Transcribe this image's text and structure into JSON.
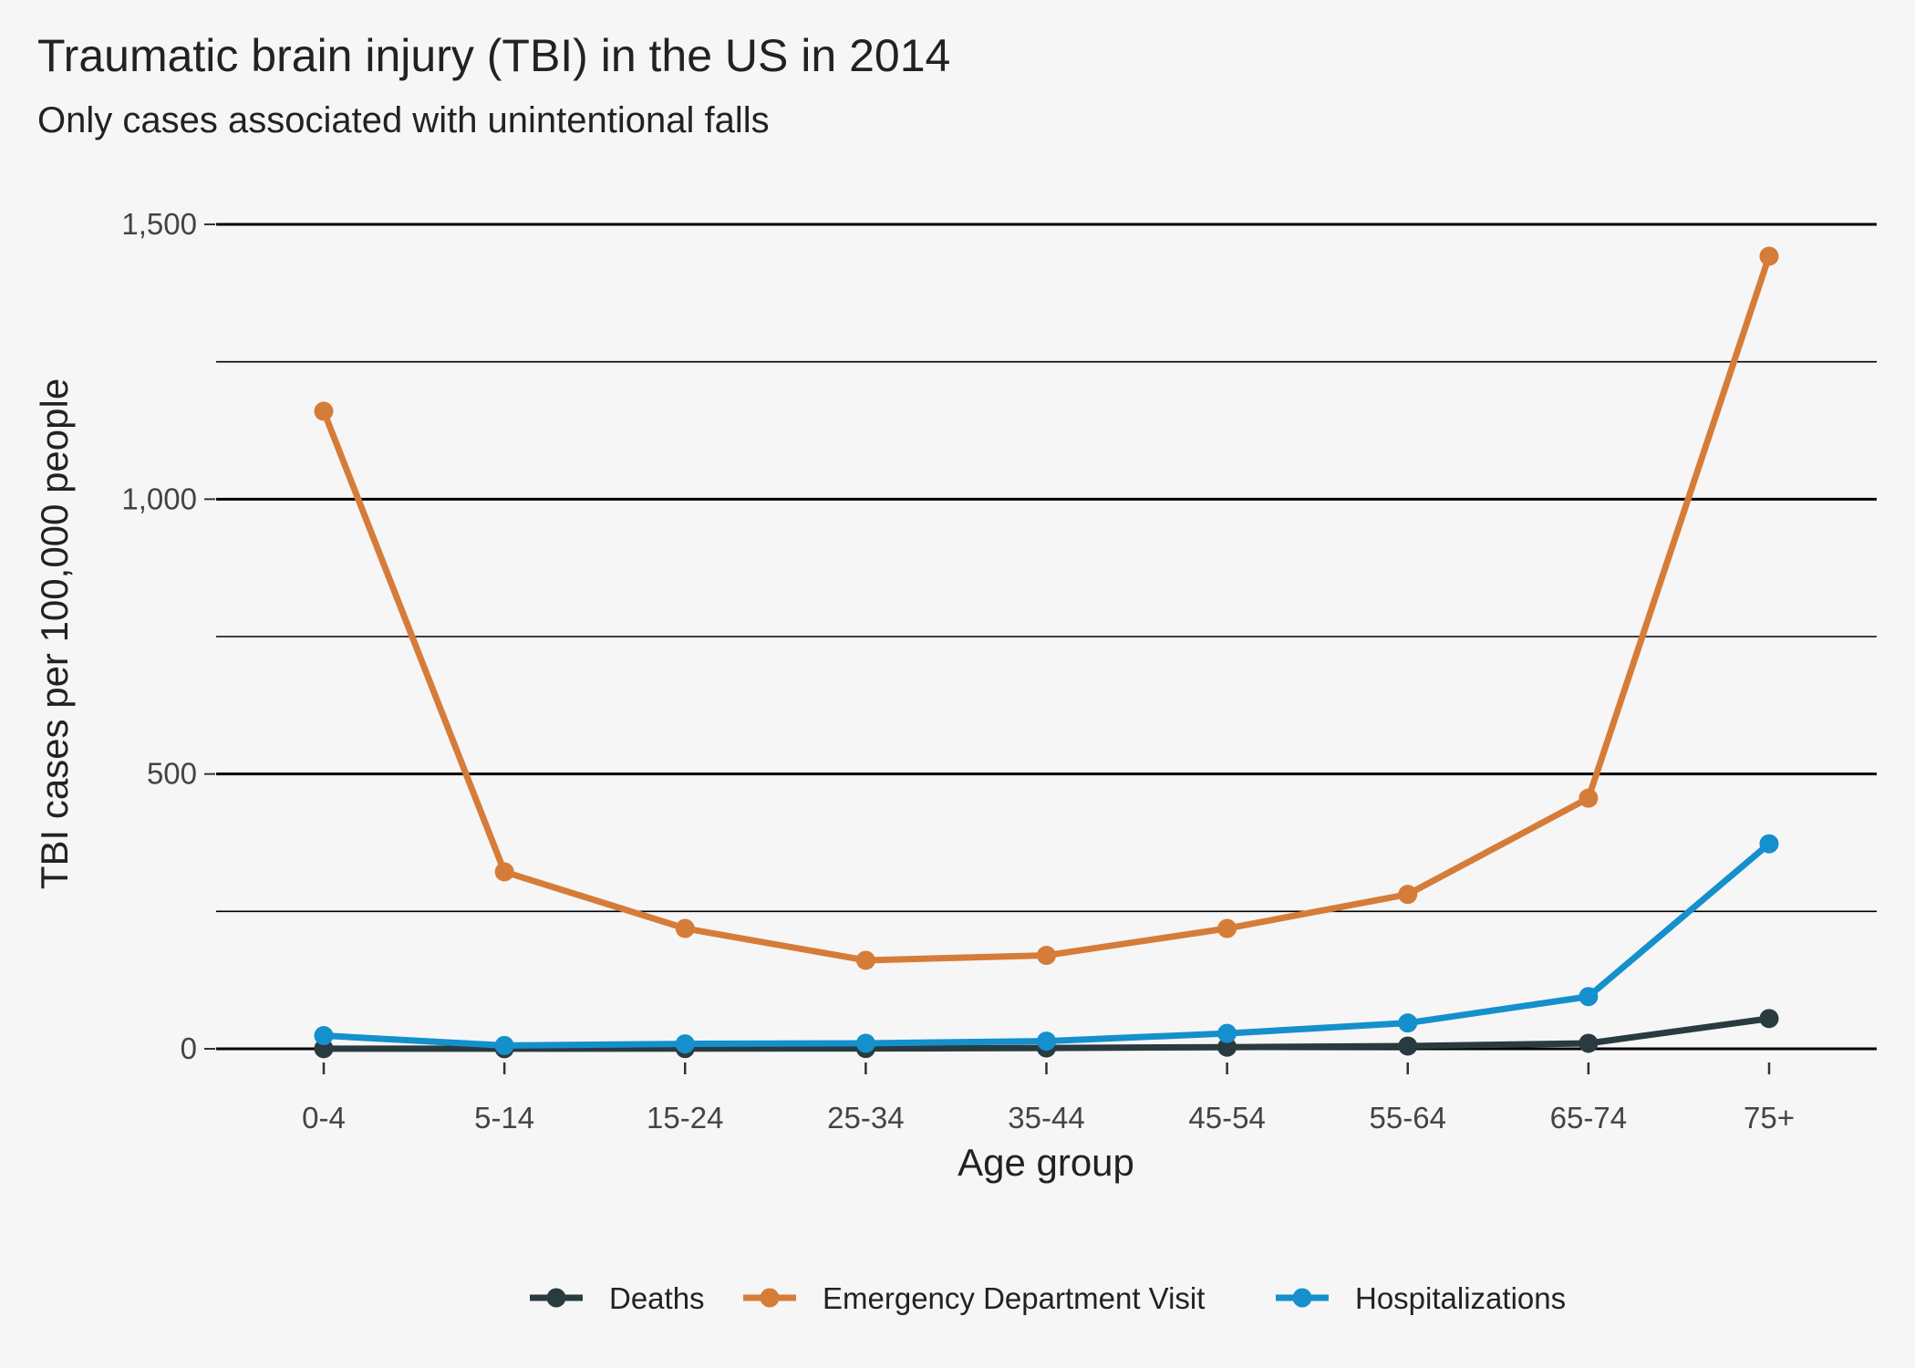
{
  "colors": {
    "background": "#f6f6f6",
    "gridline": "#000000",
    "deaths": "#2a3b40",
    "ed_visit": "#d67c39",
    "hospitalizations": "#1490cc"
  },
  "chart_data": {
    "type": "line",
    "title": "Traumatic brain injury (TBI) in the US in 2014",
    "subtitle": "Only cases associated with unintentional falls",
    "xlabel": "Age group",
    "ylabel": "TBI cases per 100,000 people",
    "categories": [
      "0-4",
      "5-14",
      "15-24",
      "25-34",
      "35-44",
      "45-54",
      "55-64",
      "65-74",
      "75+"
    ],
    "ylim": [
      -60,
      1560
    ],
    "yticks": [
      0,
      500,
      1000,
      1500
    ],
    "ytick_labels": [
      "0",
      "500",
      "1,000",
      "1,500"
    ],
    "minor_gridlines": [
      250,
      750,
      1250
    ],
    "grid": true,
    "legend_position": "bottom",
    "series": [
      {
        "name": "Deaths",
        "color": "#2a3b40",
        "values": [
          0.3,
          0.2,
          0.4,
          0.6,
          1.5,
          3,
          5,
          10,
          55
        ]
      },
      {
        "name": "Emergency Department Visit",
        "color": "#d67c39",
        "values": [
          1160,
          322,
          219,
          161,
          170,
          219,
          281,
          456,
          1442
        ]
      },
      {
        "name": "Hospitalizations",
        "color": "#1490cc",
        "values": [
          24,
          6,
          9,
          10,
          14,
          28,
          47,
          95,
          373
        ]
      }
    ]
  }
}
